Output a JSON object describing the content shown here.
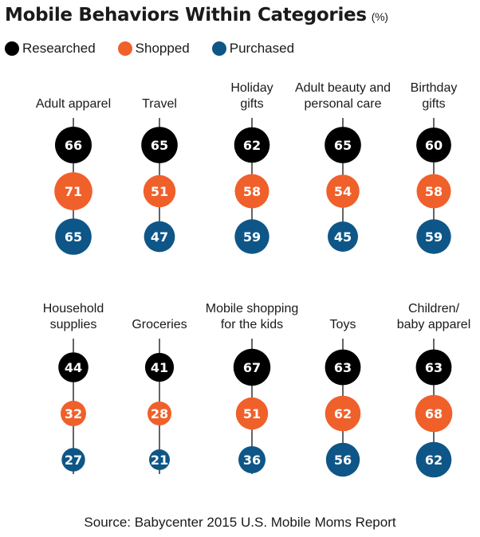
{
  "title": "Mobile Behaviors Within Categories",
  "unit": "(%)",
  "source": "Source: Babycenter 2015 U.S. Mobile Moms Report",
  "colors": {
    "researched": "#000000",
    "shopped": "#f0602a",
    "purchased": "#0e5687",
    "line": "#222222",
    "label_text": "#ffffff"
  },
  "chart_data": {
    "type": "bubble-column",
    "series": [
      {
        "name": "Researched",
        "color": "#000000"
      },
      {
        "name": "Shopped",
        "color": "#f0602a"
      },
      {
        "name": "Purchased",
        "color": "#0e5687"
      }
    ],
    "categories": [
      {
        "label": [
          "Adult apparel"
        ],
        "values": [
          66,
          71,
          65
        ]
      },
      {
        "label": [
          "Travel"
        ],
        "values": [
          65,
          51,
          47
        ]
      },
      {
        "label": [
          "Holiday",
          "gifts"
        ],
        "values": [
          62,
          58,
          59
        ]
      },
      {
        "label": [
          "Adult beauty and",
          "personal care"
        ],
        "values": [
          65,
          54,
          45
        ]
      },
      {
        "label": [
          "Birthday",
          "gifts"
        ],
        "values": [
          60,
          58,
          59
        ]
      },
      {
        "label": [
          "Household",
          "supplies"
        ],
        "values": [
          44,
          32,
          27
        ]
      },
      {
        "label": [
          "Groceries"
        ],
        "values": [
          41,
          28,
          21
        ]
      },
      {
        "label": [
          "Mobile shopping",
          "for the kids"
        ],
        "values": [
          67,
          51,
          36
        ]
      },
      {
        "label": [
          "Toys"
        ],
        "values": [
          63,
          62,
          56
        ]
      },
      {
        "label": [
          "Children/",
          "baby apparel"
        ],
        "values": [
          63,
          68,
          62
        ]
      }
    ]
  }
}
